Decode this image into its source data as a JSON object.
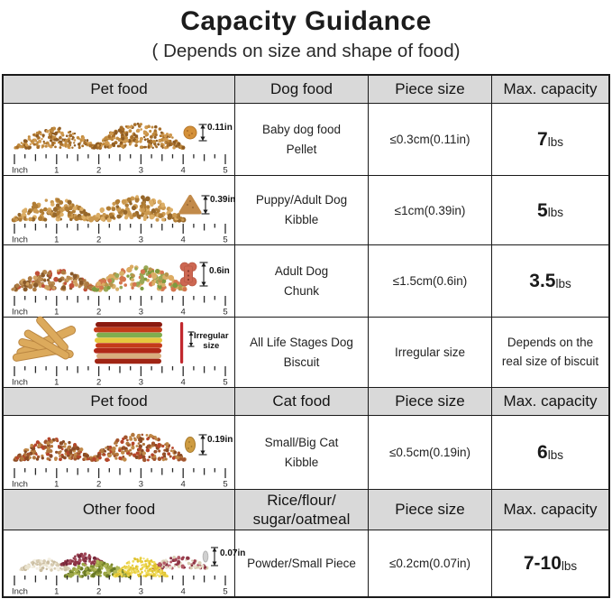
{
  "title": "Capacity Guidance",
  "subtitle": "( Depends on size and shape of food)",
  "colors": {
    "header_bg": "#d9d9d9",
    "border": "#1a1a1a",
    "irregular_line_red": "#c1272d"
  },
  "ruler": {
    "unit_label": "Inch",
    "marks": [
      "1",
      "2",
      "3",
      "4",
      "5"
    ]
  },
  "sections": [
    {
      "headers": {
        "col1": "Pet food",
        "col2": "Dog food",
        "col3": "Piece size",
        "col4": "Max. capacity"
      },
      "rows": [
        {
          "size_label": "0.11in",
          "food_name": "Baby dog food\nPellet",
          "piece_size": "≤0.3cm(0.11in)",
          "capacity": {
            "value": "7",
            "unit": "lbs"
          }
        },
        {
          "size_label": "0.39in",
          "food_name": "Puppy/Adult Dog\nKibble",
          "piece_size": "≤1cm(0.39in)",
          "capacity": {
            "value": "5",
            "unit": "lbs"
          }
        },
        {
          "size_label": "0.6in",
          "food_name": "Adult Dog\nChunk",
          "piece_size": "≤1.5cm(0.6in)",
          "capacity": {
            "value": "3.5",
            "unit": "lbs"
          }
        },
        {
          "size_label": "Irregular\nsize",
          "food_name": "All Life Stages Dog\nBiscuit",
          "piece_size": "Irregular size",
          "capacity": {
            "text": "Depends on the real size of biscuit"
          }
        }
      ]
    },
    {
      "headers": {
        "col1": "Pet food",
        "col2": "Cat food",
        "col3": "Piece size",
        "col4": "Max. capacity"
      },
      "rows": [
        {
          "size_label": "0.19in",
          "food_name": "Small/Big Cat\nKibble",
          "piece_size": "≤0.5cm(0.19in)",
          "capacity": {
            "value": "6",
            "unit": "lbs"
          }
        }
      ]
    },
    {
      "headers": {
        "col1": "Other food",
        "col2": "Rice/flour/\nsugar/oatmeal",
        "col3": "Piece size",
        "col4": "Max. capacity"
      },
      "rows": [
        {
          "size_label": "0.07in",
          "food_name": "Powder/Small Piece",
          "piece_size": "≤0.2cm(0.07in)",
          "capacity": {
            "value": "7-10",
            "unit": "lbs"
          }
        }
      ]
    }
  ]
}
